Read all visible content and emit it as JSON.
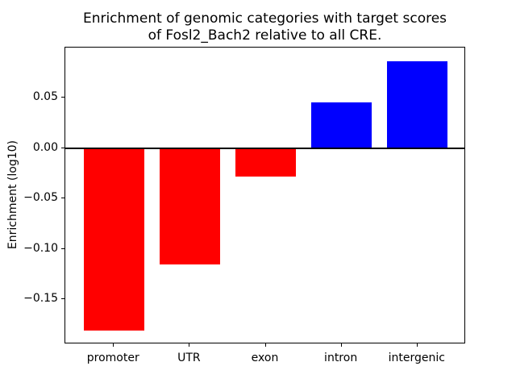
{
  "figure": {
    "background": "#ffffff",
    "text_color": "#000000"
  },
  "chart_data": {
    "type": "bar",
    "title": "Enrichment of genomic categories with target scores\nof Fosl2_Bach2 relative to all CRE.",
    "xlabel": "",
    "ylabel": "Enrichment (log10)",
    "categories": [
      "promoter",
      "UTR",
      "exon",
      "intron",
      "intergenic"
    ],
    "values": [
      -0.181,
      -0.115,
      -0.028,
      0.045,
      0.086
    ],
    "bar_colors": [
      "#ff0000",
      "#ff0000",
      "#ff0000",
      "#0000ff",
      "#0000ff"
    ],
    "negative_color": "#ff0000",
    "positive_color": "#0000ff",
    "ylim": [
      -0.1944,
      0.0994
    ],
    "xlim": [
      -0.64,
      4.64
    ],
    "yticks": [
      0.05,
      0.0,
      -0.05,
      -0.1,
      -0.15
    ],
    "ytick_labels": [
      "0.05",
      "0.00",
      "−0.05",
      "−0.10",
      "−0.15"
    ],
    "bar_width_fraction": 0.8,
    "zero_line": true,
    "zero_line_color": "#000000",
    "grid": false,
    "legend": null
  }
}
